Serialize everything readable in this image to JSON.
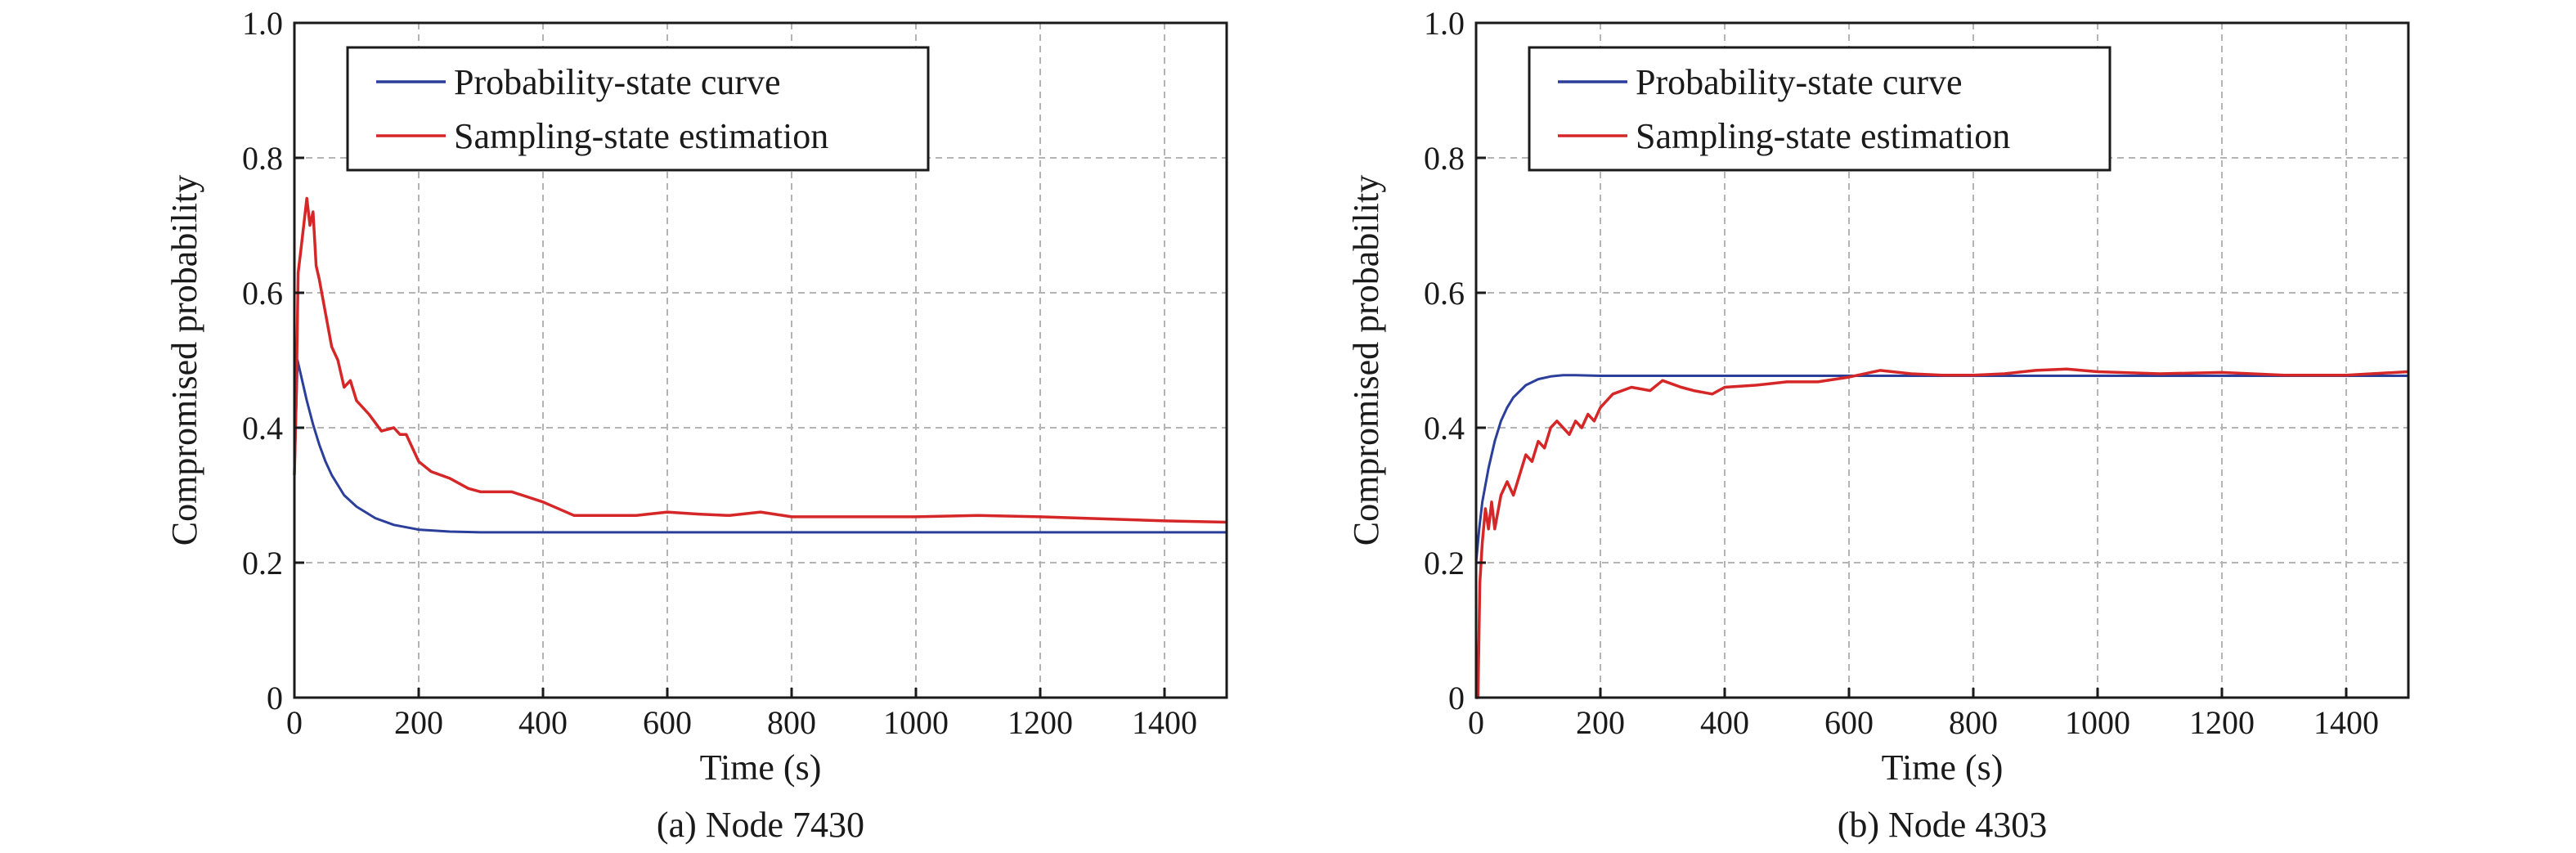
{
  "chart_data": [
    {
      "type": "line",
      "caption": "(a) Node 7430",
      "xlabel": "Time (s)",
      "ylabel": "Compromised probability",
      "xlim": [
        0,
        1500
      ],
      "ylim": [
        0,
        1.0
      ],
      "xticks": [
        0,
        200,
        400,
        600,
        800,
        1000,
        1200,
        1400
      ],
      "yticks": [
        0,
        0.2,
        0.4,
        0.6,
        0.8,
        1.0
      ],
      "ytick_labels": [
        "0",
        "0.2",
        "0.4",
        "0.6",
        "0.8",
        "1.0"
      ],
      "grid": true,
      "legend_position": "top-left",
      "series": [
        {
          "name": "Probability-state curve",
          "color": "#2b3f9a",
          "x": [
            0,
            5,
            10,
            20,
            30,
            40,
            50,
            60,
            80,
            100,
            130,
            160,
            200,
            250,
            300,
            400,
            600,
            800,
            1000,
            1200,
            1400,
            1500
          ],
          "y": [
            0.33,
            0.5,
            0.48,
            0.44,
            0.405,
            0.375,
            0.35,
            0.33,
            0.3,
            0.283,
            0.266,
            0.256,
            0.249,
            0.246,
            0.245,
            0.245,
            0.245,
            0.245,
            0.245,
            0.245,
            0.245,
            0.245
          ]
        },
        {
          "name": "Sampling-state estimation",
          "color": "#d62728",
          "x": [
            0,
            3,
            6,
            10,
            15,
            20,
            25,
            30,
            35,
            40,
            50,
            60,
            70,
            80,
            90,
            100,
            120,
            140,
            160,
            170,
            180,
            200,
            220,
            250,
            280,
            300,
            350,
            400,
            450,
            500,
            550,
            600,
            650,
            700,
            750,
            800,
            900,
            1000,
            1100,
            1200,
            1300,
            1400,
            1500
          ],
          "y": [
            0.33,
            0.45,
            0.63,
            0.66,
            0.7,
            0.74,
            0.7,
            0.72,
            0.64,
            0.62,
            0.57,
            0.52,
            0.5,
            0.46,
            0.47,
            0.44,
            0.42,
            0.395,
            0.4,
            0.39,
            0.39,
            0.35,
            0.335,
            0.325,
            0.31,
            0.305,
            0.305,
            0.29,
            0.27,
            0.27,
            0.27,
            0.275,
            0.272,
            0.27,
            0.275,
            0.268,
            0.268,
            0.268,
            0.27,
            0.268,
            0.265,
            0.262,
            0.26
          ]
        }
      ]
    },
    {
      "type": "line",
      "caption": "(b) Node 4303",
      "xlabel": "Time (s)",
      "ylabel": "Compromised probability",
      "xlim": [
        0,
        1500
      ],
      "ylim": [
        0,
        1.0
      ],
      "xticks": [
        0,
        200,
        400,
        600,
        800,
        1000,
        1200,
        1400
      ],
      "yticks": [
        0,
        0.2,
        0.4,
        0.6,
        0.8,
        1.0
      ],
      "ytick_labels": [
        "0",
        "0.2",
        "0.4",
        "0.6",
        "0.8",
        "1.0"
      ],
      "grid": true,
      "legend_position": "top-left",
      "series": [
        {
          "name": "Probability-state curve",
          "color": "#2b3f9a",
          "x": [
            0,
            5,
            10,
            20,
            30,
            40,
            50,
            60,
            80,
            100,
            120,
            140,
            160,
            200,
            300,
            400,
            600,
            800,
            1000,
            1200,
            1400,
            1500
          ],
          "y": [
            0.2,
            0.25,
            0.29,
            0.34,
            0.38,
            0.41,
            0.43,
            0.445,
            0.463,
            0.472,
            0.476,
            0.478,
            0.478,
            0.477,
            0.477,
            0.477,
            0.477,
            0.477,
            0.477,
            0.477,
            0.477,
            0.477
          ]
        },
        {
          "name": "Sampling-state estimation",
          "color": "#d62728",
          "x": [
            0,
            3,
            6,
            10,
            15,
            20,
            25,
            30,
            40,
            50,
            60,
            70,
            80,
            90,
            100,
            110,
            120,
            130,
            140,
            150,
            160,
            170,
            180,
            190,
            200,
            220,
            250,
            280,
            300,
            330,
            350,
            380,
            400,
            450,
            500,
            550,
            600,
            650,
            700,
            750,
            800,
            850,
            900,
            950,
            1000,
            1100,
            1200,
            1300,
            1400,
            1500
          ],
          "y": [
            0.0,
            0.0,
            0.17,
            0.23,
            0.28,
            0.25,
            0.29,
            0.25,
            0.3,
            0.32,
            0.3,
            0.33,
            0.36,
            0.35,
            0.38,
            0.37,
            0.4,
            0.41,
            0.4,
            0.39,
            0.41,
            0.4,
            0.42,
            0.41,
            0.43,
            0.45,
            0.46,
            0.455,
            0.47,
            0.46,
            0.455,
            0.45,
            0.46,
            0.463,
            0.468,
            0.468,
            0.475,
            0.485,
            0.48,
            0.478,
            0.478,
            0.48,
            0.485,
            0.487,
            0.483,
            0.48,
            0.482,
            0.478,
            0.478,
            0.483
          ]
        }
      ]
    }
  ]
}
